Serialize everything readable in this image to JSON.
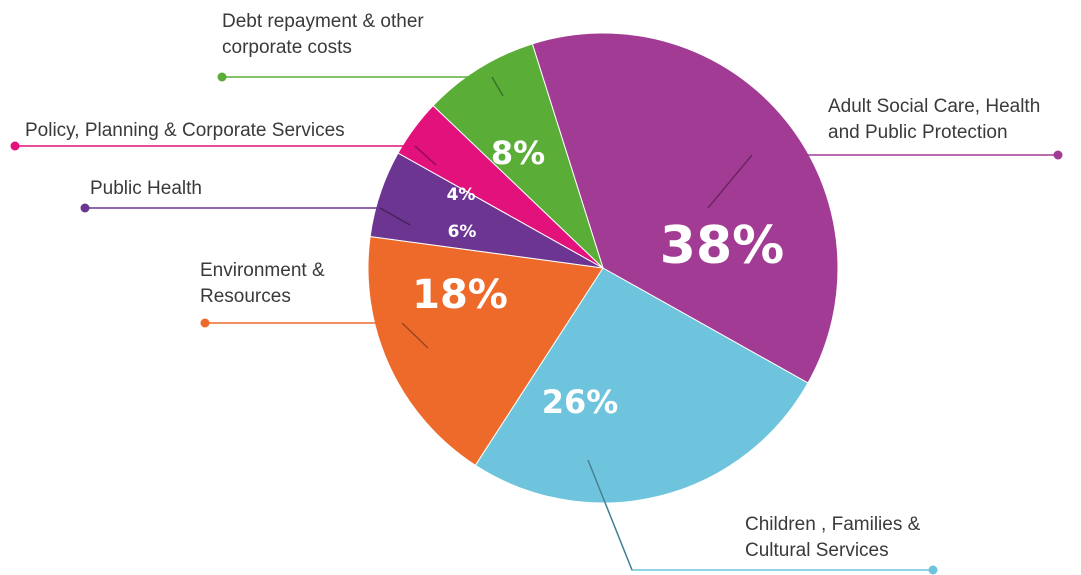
{
  "chart_data": {
    "type": "pie",
    "title": "",
    "slices": [
      {
        "key": "adult",
        "label": [
          "Adult Social Care, Health",
          "and Public Protection"
        ],
        "value": 38,
        "value_label": "38%",
        "color": "#a23b93"
      },
      {
        "key": "children",
        "label": [
          "Children , Families &",
          "Cultural Services"
        ],
        "value": 26,
        "value_label": "26%",
        "color": "#6ec4dc"
      },
      {
        "key": "environment",
        "label": [
          "Environment &",
          "Resources"
        ],
        "value": 18,
        "value_label": "18%",
        "color": "#ee6a2b"
      },
      {
        "key": "public-health",
        "label": [
          "Public Health"
        ],
        "value": 6,
        "value_label": "6%",
        "color": "#6b3591"
      },
      {
        "key": "policy",
        "label": [
          "Policy, Planning & Corporate Services"
        ],
        "value": 4,
        "value_label": "4%",
        "color": "#e2117c"
      },
      {
        "key": "debt",
        "label": [
          "Debt repayment & other",
          "corporate costs"
        ],
        "value": 8,
        "value_label": "8%",
        "color": "#5aad37"
      }
    ],
    "legend": "none"
  }
}
